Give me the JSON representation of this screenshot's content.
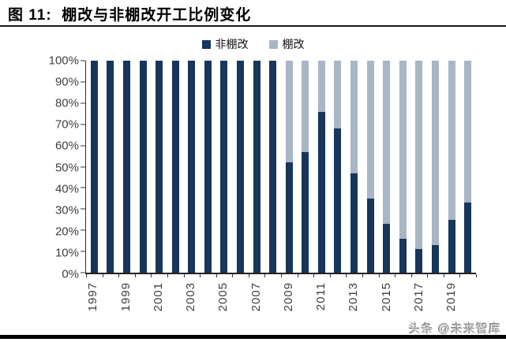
{
  "title": "图 11:  棚改与非棚改开工比例变化",
  "watermark": "头条 @未来智库",
  "colors": {
    "dark_navy": "#16365C",
    "light_blue_gray": "#A8B6C6",
    "axis": "#333333",
    "tick_label": "#3f3f3f"
  },
  "legend": {
    "items": [
      {
        "label": "非棚改"
      },
      {
        "label": "棚改"
      }
    ],
    "position": "top-center"
  },
  "chart_data": {
    "type": "bar",
    "stacked": true,
    "stack_total": 100,
    "unit": "%",
    "title": "棚改与非棚改开工比例变化",
    "xlabel": "",
    "ylabel": "",
    "ylim": [
      0,
      100
    ],
    "grid": false,
    "legend_position": "top-center",
    "categories": [
      "1997",
      "1998",
      "1999",
      "2000",
      "2001",
      "2002",
      "2003",
      "2004",
      "2005",
      "2006",
      "2007",
      "2008",
      "2009",
      "2010",
      "2011",
      "2012",
      "2013",
      "2014",
      "2015",
      "2016",
      "2017",
      "2018",
      "2019",
      "2020"
    ],
    "series": [
      {
        "name": "非棚改",
        "color": "#16365C",
        "values": [
          100,
          100,
          100,
          100,
          100,
          100,
          100,
          100,
          100,
          100,
          100,
          100,
          52,
          57,
          76,
          68,
          47,
          35,
          23,
          16,
          11,
          13,
          25,
          33
        ]
      },
      {
        "name": "棚改",
        "color": "#A8B6C6",
        "values": [
          0,
          0,
          0,
          0,
          0,
          0,
          0,
          0,
          0,
          0,
          0,
          0,
          48,
          43,
          24,
          32,
          53,
          65,
          77,
          84,
          89,
          87,
          75,
          67
        ]
      }
    ],
    "y_ticks": [
      "100%",
      "90%",
      "80%",
      "70%",
      "60%",
      "50%",
      "40%",
      "30%",
      "20%",
      "10%",
      "0%"
    ],
    "x_tick_labels": [
      "1997",
      "1999",
      "2001",
      "2003",
      "2005",
      "2007",
      "2009",
      "2011",
      "2013",
      "2015",
      "2017",
      "2019"
    ]
  }
}
